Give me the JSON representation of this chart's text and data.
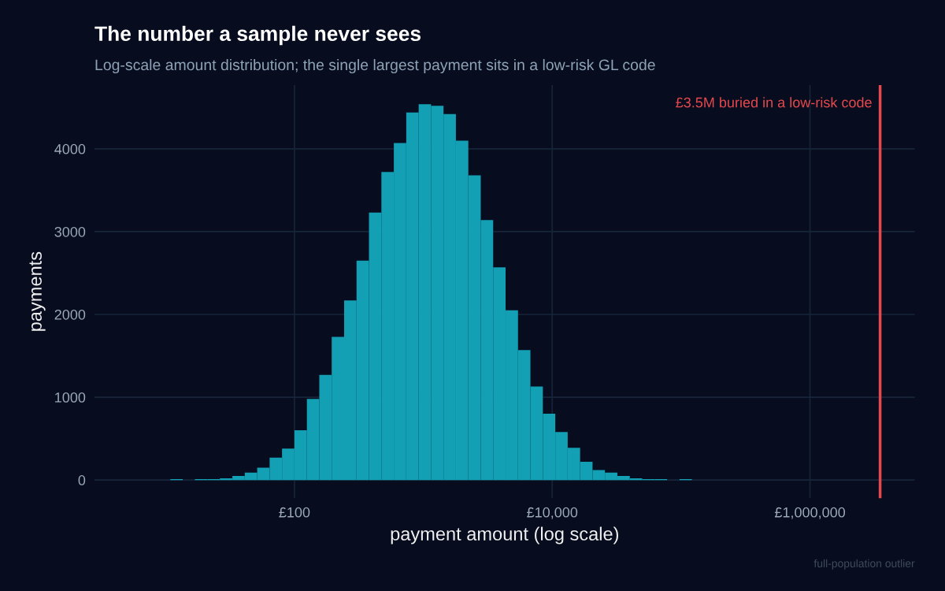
{
  "chart_data": {
    "type": "histogram",
    "title": "The number a sample never sees",
    "subtitle": "Log-scale amount distribution; the single largest payment sits in a low-risk GL code",
    "xlabel": "payment amount (log scale)",
    "ylabel": "payments",
    "bins": [
      10.9,
      13.6,
      16.9,
      21.1,
      26.4,
      33.0,
      41.2,
      51.4,
      64.2,
      80.1,
      100,
      124.9,
      155.9,
      194.6,
      243,
      303.3,
      378.7,
      472.8,
      590.3,
      737,
      920,
      1148,
      1434,
      1790,
      2234,
      2790,
      3483,
      4348,
      5428,
      6776,
      8460,
      10562,
      13186,
      16462,
      20551,
      25657,
      32029,
      39994,
      49934,
      62340,
      77830,
      97170,
      121300
    ],
    "values": [
      10,
      0,
      10,
      10,
      20,
      50,
      90,
      150,
      270,
      380,
      600,
      980,
      1270,
      1730,
      2170,
      2650,
      3230,
      3720,
      4070,
      4440,
      4540,
      4520,
      4420,
      4100,
      3680,
      3140,
      2570,
      2050,
      1570,
      1130,
      800,
      580,
      390,
      220,
      120,
      90,
      50,
      20,
      10,
      10,
      0,
      10
    ],
    "color": "#139fb4",
    "log": "x",
    "xlim": [
      2.81,
      6500000
    ],
    "xticks": [
      {
        "value": 100,
        "label": "£100"
      },
      {
        "value": 10000,
        "label": "£10,000"
      },
      {
        "value": 1000000,
        "label": "£1,000,000"
      }
    ],
    "ylim": [
      -220,
      4770
    ],
    "yticks": [
      0,
      1000,
      2000,
      3000,
      4000
    ],
    "grid": true,
    "ref_lines": [
      {
        "axis": "x",
        "value": 3500000,
        "label": "£3.5M buried in a low-risk code",
        "color": "#e5484d"
      }
    ],
    "annotations": [
      "full-population outlier"
    ]
  }
}
